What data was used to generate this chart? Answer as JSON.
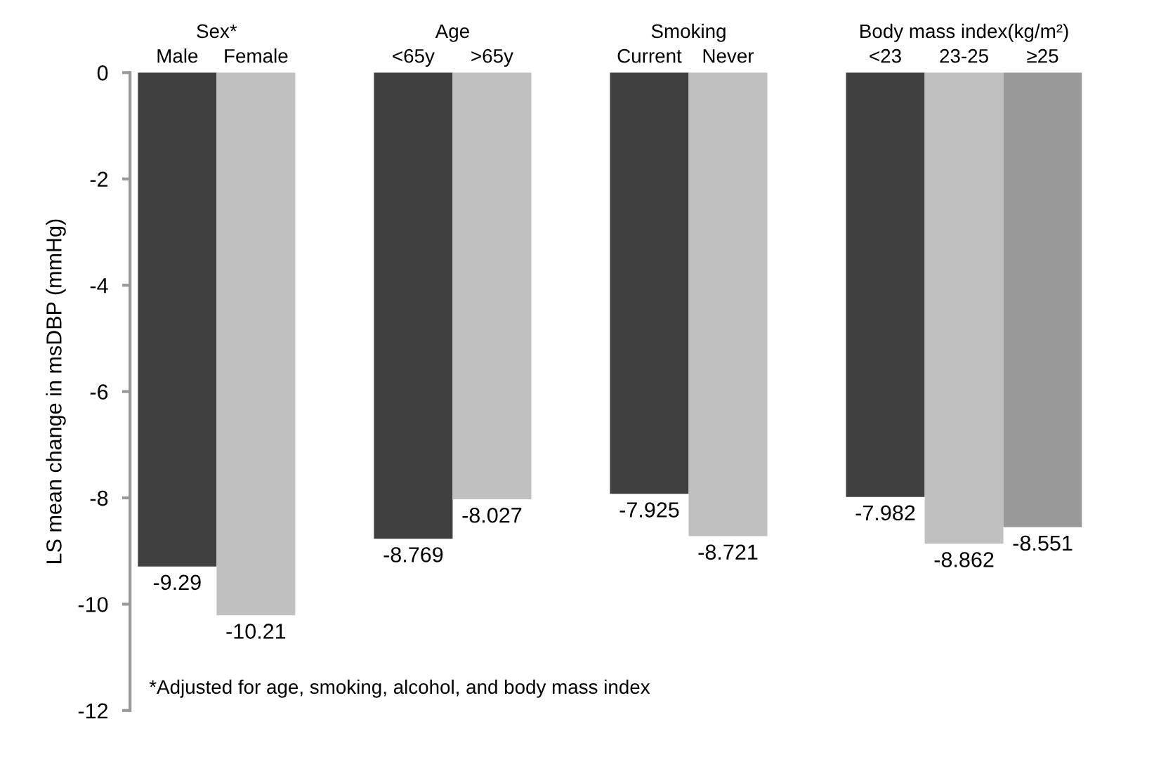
{
  "chart_data": {
    "type": "bar",
    "ylabel": "LS mean change in msDBP (mmHg)",
    "categories": [
      "Male",
      "Female",
      null,
      "<65y",
      ">65y",
      null,
      "Current",
      "Never",
      null,
      "<23",
      "23-25",
      "≥25"
    ],
    "values": [
      -9.29,
      -10.21,
      null,
      -8.769,
      -8.027,
      null,
      -7.925,
      -8.721,
      null,
      -7.982,
      -8.862,
      -8.551
    ],
    "colors": [
      "#404040",
      "#c0c0c0",
      null,
      "#404040",
      "#c0c0c0",
      null,
      "#404040",
      "#c0c0c0",
      null,
      "#404040",
      "#c0c0c0",
      "#999999"
    ],
    "ylim": [
      -12,
      0
    ],
    "yticks": [
      0,
      -2,
      -4,
      -6,
      -8,
      -10,
      -12
    ],
    "grid": false,
    "data_labels": true,
    "annotations": [
      "Sex*",
      "Age",
      "Smoking",
      "Body mass index(kg/m²)",
      "*Adjusted for age, smoking, alcohol, and body mass index"
    ]
  }
}
